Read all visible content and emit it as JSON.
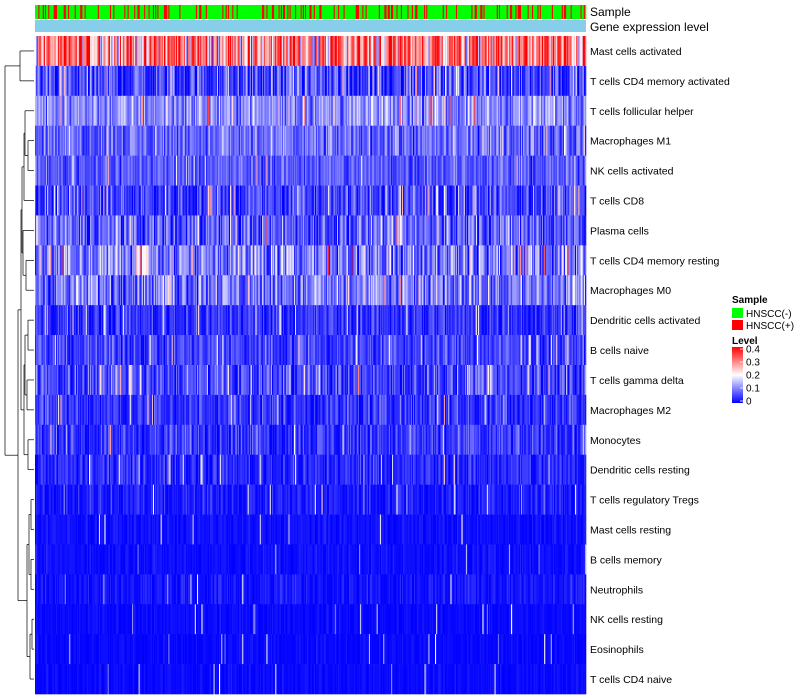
{
  "chart_data": {
    "type": "heatmap",
    "title": "",
    "columns_count": 500,
    "annotations": [
      {
        "label": "Sample"
      },
      {
        "label": "Gene expression level"
      }
    ],
    "rows": [
      {
        "label": "Mast cells activated",
        "mean": 0.3,
        "spread": 0.1,
        "bright_prob": 0.05
      },
      {
        "label": "T cells CD4 memory activated",
        "mean": 0.05,
        "spread": 0.05,
        "bright_prob": 0.06
      },
      {
        "label": "T cells follicular helper",
        "mean": 0.11,
        "spread": 0.04,
        "bright_prob": 0.04
      },
      {
        "label": "Macrophages M1",
        "mean": 0.08,
        "spread": 0.035,
        "bright_prob": 0.03
      },
      {
        "label": "NK cells activated",
        "mean": 0.07,
        "spread": 0.03,
        "bright_prob": 0.03
      },
      {
        "label": "T cells CD8",
        "mean": 0.05,
        "spread": 0.04,
        "bright_prob": 0.05
      },
      {
        "label": "Plasma cells",
        "mean": 0.07,
        "spread": 0.05,
        "bright_prob": 0.04
      },
      {
        "label": "T cells CD4 memory resting",
        "mean": 0.1,
        "spread": 0.06,
        "bright_prob": 0.07
      },
      {
        "label": "Macrophages M0",
        "mean": 0.09,
        "spread": 0.05,
        "bright_prob": 0.05
      },
      {
        "label": "Dendritic cells activated",
        "mean": 0.04,
        "spread": 0.03,
        "bright_prob": 0.04
      },
      {
        "label": "B cells naive",
        "mean": 0.05,
        "spread": 0.03,
        "bright_prob": 0.04
      },
      {
        "label": "T cells gamma delta",
        "mean": 0.05,
        "spread": 0.04,
        "bright_prob": 0.05
      },
      {
        "label": "Macrophages M2",
        "mean": 0.04,
        "spread": 0.03,
        "bright_prob": 0.04
      },
      {
        "label": "Monocytes",
        "mean": 0.04,
        "spread": 0.03,
        "bright_prob": 0.03
      },
      {
        "label": "Dendritic cells resting",
        "mean": 0.03,
        "spread": 0.025,
        "bright_prob": 0.03
      },
      {
        "label": "T cells regulatory  Tregs",
        "mean": 0.02,
        "spread": 0.02,
        "bright_prob": 0.03
      },
      {
        "label": "Mast cells resting",
        "mean": 0.01,
        "spread": 0.01,
        "bright_prob": 0.02
      },
      {
        "label": "B cells memory",
        "mean": 0.01,
        "spread": 0.01,
        "bright_prob": 0.02
      },
      {
        "label": "Neutrophils",
        "mean": 0.015,
        "spread": 0.015,
        "bright_prob": 0.02
      },
      {
        "label": "NK cells resting",
        "mean": 0.005,
        "spread": 0.008,
        "bright_prob": 0.015
      },
      {
        "label": "Eosinophils",
        "mean": 0.005,
        "spread": 0.008,
        "bright_prob": 0.015
      },
      {
        "label": "T cells CD4 naive",
        "mean": 0.005,
        "spread": 0.008,
        "bright_prob": 0.015
      }
    ],
    "legend": {
      "sample": {
        "title": "Sample",
        "items": [
          {
            "label": "HNSCC(-)",
            "color": "#00ff00"
          },
          {
            "label": "HNSCC(+)",
            "color": "#ff0000"
          }
        ],
        "negative_fraction": 0.78
      },
      "level": {
        "title": "Level",
        "ticks": [
          "0.4",
          "0.3",
          "0.2",
          "0.1",
          "0"
        ],
        "range": [
          0,
          0.4
        ],
        "colors": [
          "#0000ff",
          "#ffffff",
          "#ff0000"
        ]
      },
      "gene_expression_color": "#87ceeb"
    }
  }
}
